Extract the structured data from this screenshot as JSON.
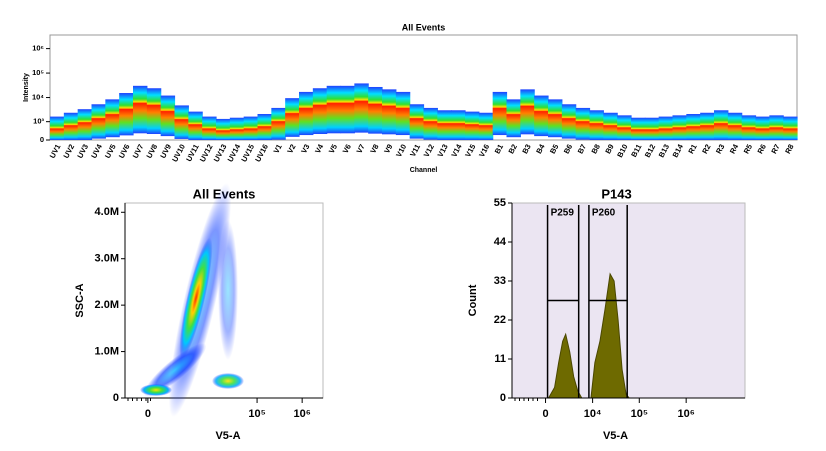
{
  "chart_data": [
    {
      "type": "spectrum",
      "title": "All Events",
      "x_label": "Channel",
      "y_label": "Intensity",
      "categories": [
        "UV1",
        "UV2",
        "UV3",
        "UV4",
        "UV5",
        "UV6",
        "UV7",
        "UV8",
        "UV9",
        "UV10",
        "UV11",
        "UV12",
        "UV13",
        "UV14",
        "UV15",
        "UV16",
        "V1",
        "V2",
        "V3",
        "V4",
        "V5",
        "V6",
        "V7",
        "V8",
        "V9",
        "V10",
        "V11",
        "V12",
        "V13",
        "V14",
        "V15",
        "V16",
        "B1",
        "B2",
        "B3",
        "B4",
        "B5",
        "B6",
        "B7",
        "B8",
        "B9",
        "B10",
        "B11",
        "B12",
        "B13",
        "B14",
        "R1",
        "R2",
        "R3",
        "R4",
        "R5",
        "R6",
        "R7",
        "R8"
      ],
      "values": [
        460,
        660,
        900,
        1350,
        2000,
        3300,
        5800,
        4800,
        2700,
        1230,
        730,
        460,
        360,
        410,
        460,
        590,
        1000,
        2200,
        3600,
        4800,
        5800,
        5800,
        7000,
        5300,
        4400,
        3600,
        1350,
        1000,
        820,
        820,
        730,
        660,
        3600,
        2000,
        4400,
        2700,
        2000,
        1350,
        1000,
        820,
        660,
        520,
        410,
        410,
        460,
        520,
        590,
        660,
        820,
        660,
        520,
        460,
        520,
        460
      ],
      "yscale": "biexponential",
      "ylim": [
        0,
        3600000
      ],
      "yticks": [
        0,
        {
          "value": 1000,
          "label": "10³"
        },
        {
          "value": 10000,
          "label": "10⁴"
        },
        {
          "value": 100000,
          "label": "10⁵"
        },
        {
          "value": 1000000,
          "label": "10⁶"
        }
      ]
    },
    {
      "type": "density",
      "title": "All Events",
      "x_label": "V5-A",
      "y_label": "SSC-A",
      "xscale": "biexponential",
      "xlim": [
        -1100,
        2900000
      ],
      "xticks": [
        0,
        {
          "value": 100000,
          "label": "10⁵"
        },
        {
          "value": 1000000,
          "label": "10⁶"
        }
      ],
      "ylim": [
        0,
        4200000
      ],
      "yticks": [
        0,
        {
          "value": 1000000,
          "label": "1.0M"
        },
        {
          "value": 2000000,
          "label": "2.0M"
        },
        {
          "value": 3000000,
          "label": "3.0M"
        },
        {
          "value": 4000000,
          "label": "4.0M"
        }
      ]
    },
    {
      "type": "area",
      "title": "P143",
      "x_label": "V5-A",
      "y_label": "Count",
      "color": "#6e6a00",
      "background": "#ebe5f2",
      "x": [
        300,
        920,
        1380,
        1890,
        2320,
        2980,
        3740,
        4660,
        5760,
        7000,
        9200,
        11200,
        14400,
        18500,
        23800,
        29000,
        35300,
        43000,
        52400,
        61000
      ],
      "values": [
        0,
        3,
        10,
        16,
        18,
        13,
        6,
        2,
        0,
        null,
        0,
        10,
        16,
        25,
        35,
        33,
        22,
        8,
        1,
        0
      ],
      "xscale": "biexponential",
      "xlim": [
        -5000,
        18000000
      ],
      "xticks": [
        0,
        {
          "value": 10000,
          "label": "10⁴"
        },
        {
          "value": 100000,
          "label": "10⁵"
        },
        {
          "value": 1000000,
          "label": "10⁶"
        }
      ],
      "ylim": [
        0,
        55
      ],
      "yticks": [
        0,
        11,
        22,
        33,
        44,
        55
      ],
      "gates": [
        {
          "name": "P259",
          "x": [
            200,
            4900
          ],
          "y": 27.5
        },
        {
          "name": "P260",
          "x": [
            8300,
            55200
          ],
          "y": 27.5
        }
      ]
    }
  ]
}
